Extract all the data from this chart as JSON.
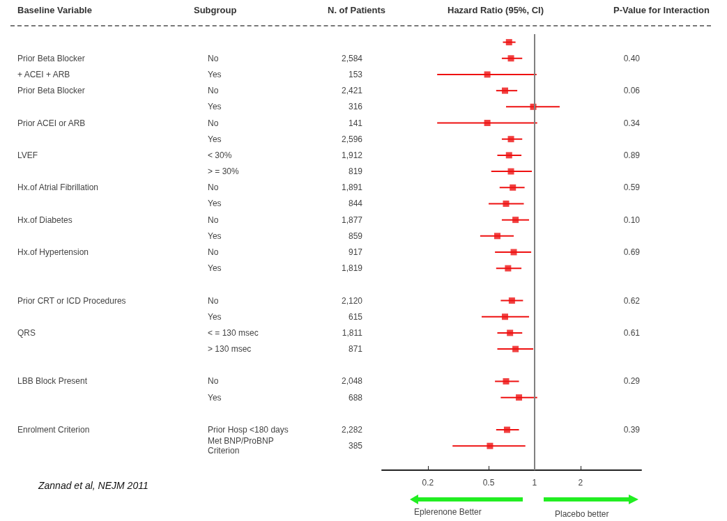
{
  "chart_data": {
    "type": "scatter",
    "orientation": "horizontal",
    "log": "x",
    "marker": "square",
    "color": "#ee1111",
    "xlabel": "Hazard Ratio (95%, CI)",
    "xlim": [
      0.1,
      5
    ],
    "xticks": [
      0.2,
      0.5,
      1,
      2
    ],
    "categories": [
      null,
      "2,584",
      "153",
      "2,421",
      "316",
      "141",
      "2,596",
      "1,912",
      "819",
      "1,891",
      "844",
      "1,877",
      "859",
      "917",
      "1,819",
      null,
      "2,120",
      "615",
      "1,811",
      "871",
      null,
      "2,048",
      "688",
      null,
      "2,282",
      "385",
      null
    ],
    "y_categories": [
      null,
      "Prior Beta Blocker",
      "+ ACEI + ARB",
      "Prior Beta Blocker",
      null,
      "Prior ACEI or ARB",
      null,
      "LVEF",
      null,
      "Hx.of Atrial Fibrillation",
      null,
      "Hx.of Diabetes",
      null,
      "Hx.of Hypertension",
      null,
      null,
      "Prior CRT or ICD Procedures",
      null,
      "QRS",
      null,
      null,
      "LBB Block Present",
      null,
      null,
      "Enrolment Criterion",
      null,
      null
    ],
    "y2_categories": [
      null,
      "0.40",
      null,
      "0.06",
      null,
      "0.34",
      null,
      "0.89",
      null,
      "0.59",
      null,
      "0.10",
      null,
      "0.69",
      null,
      null,
      "0.62",
      null,
      "0.61",
      null,
      null,
      "0.29",
      null,
      null,
      "0.39",
      null,
      null
    ],
    "values": [
      0.68,
      0.7,
      0.49,
      0.64,
      0.98,
      0.49,
      0.7,
      0.68,
      0.7,
      0.72,
      0.65,
      0.75,
      0.57,
      0.73,
      0.67,
      null,
      0.71,
      0.64,
      0.69,
      0.75,
      null,
      0.65,
      0.79,
      null,
      0.66,
      0.51,
      null
    ],
    "errors": [
      [
        0.62,
        0.75
      ],
      [
        0.61,
        0.83
      ],
      [
        0.23,
        1.03
      ],
      [
        0.56,
        0.77
      ],
      [
        0.65,
        1.46
      ],
      [
        0.23,
        1.04
      ],
      [
        0.61,
        0.83
      ],
      [
        0.57,
        0.82
      ],
      [
        0.52,
        0.96
      ],
      [
        0.59,
        0.86
      ],
      [
        0.5,
        0.85
      ],
      [
        0.61,
        0.92
      ],
      [
        0.44,
        0.73
      ],
      [
        0.55,
        0.95
      ],
      [
        0.56,
        0.82
      ],
      null,
      [
        0.6,
        0.84
      ],
      [
        0.45,
        0.92
      ],
      [
        0.57,
        0.83
      ],
      [
        0.57,
        0.98
      ],
      null,
      [
        0.55,
        0.79
      ],
      [
        0.6,
        1.04
      ],
      null,
      [
        0.56,
        0.79
      ],
      [
        0.29,
        0.87
      ],
      null
    ],
    "ref_lines": [
      {
        "axis": "x",
        "value": 1,
        "color": "#808080"
      }
    ],
    "annotations": [
      "Baseline Variable",
      "Subgroup",
      "N. of Patients",
      "P-Value for Interaction",
      "Zannad et al, NEJM 2011",
      "Eplerenone Better",
      "Placebo better",
      "No",
      "Yes",
      "No",
      "Yes",
      "No",
      "Yes",
      "< 30%",
      "> = 30%",
      "No",
      "Yes",
      "No",
      "Yes",
      "No",
      "Yes",
      "No",
      "Yes",
      "< = 130 msec",
      "> 130 msec",
      "No",
      "Yes",
      "Prior Hosp <180 days",
      "Met BNP/ProBNP\nCriterion"
    ]
  }
}
